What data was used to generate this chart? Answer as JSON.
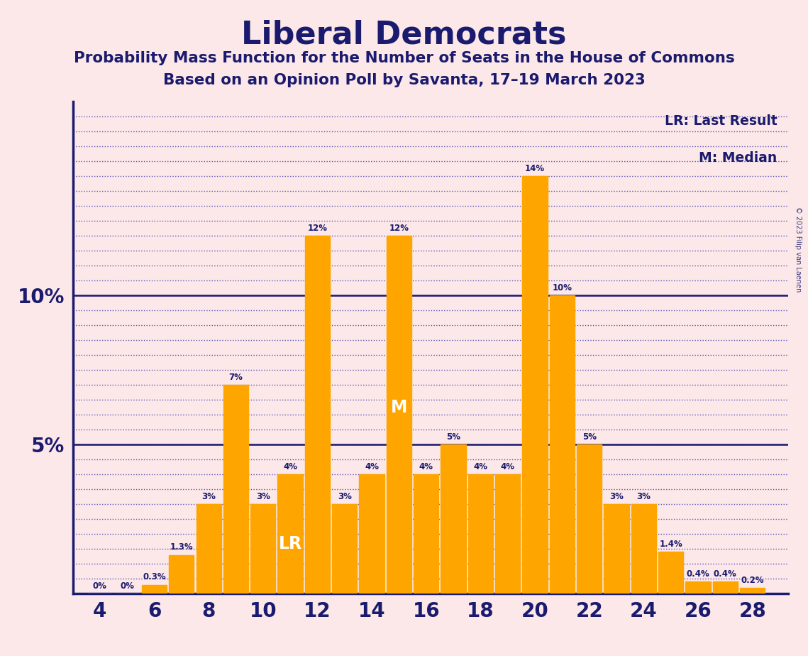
{
  "title": "Liberal Democrats",
  "subtitle1": "Probability Mass Function for the Number of Seats in the House of Commons",
  "subtitle2": "Based on an Opinion Poll by Savanta, 17–19 March 2023",
  "copyright": "© 2023 Filip van Laenen",
  "background_color": "#fce8e8",
  "bar_color": "#FFA500",
  "text_color": "#1a1a6e",
  "seats": [
    4,
    5,
    6,
    7,
    8,
    9,
    10,
    11,
    12,
    13,
    14,
    15,
    16,
    17,
    18,
    19,
    20,
    21,
    22,
    23,
    24,
    25,
    26,
    27,
    28
  ],
  "values": [
    0.0,
    0.0,
    0.3,
    1.3,
    3.0,
    7.0,
    3.0,
    4.0,
    12.0,
    3.0,
    4.0,
    12.0,
    4.0,
    5.0,
    4.0,
    4.0,
    14.0,
    10.0,
    5.0,
    3.0,
    3.0,
    1.4,
    0.4,
    0.4,
    0.2
  ],
  "value_labels": [
    "0%",
    "0%",
    "0.3%",
    "1.3%",
    "3%",
    "7%",
    "3%",
    "4%",
    "12%",
    "3%",
    "4%",
    "12%",
    "4%",
    "5%",
    "4%",
    "4%",
    "14%",
    "10%",
    "5%",
    "3%",
    "3%",
    "1.4%",
    "0.4%",
    "0.4%",
    "0.2%"
  ],
  "last_seat_value": 0.0,
  "last_result_seat": 11,
  "median_seat": 15,
  "ylim": [
    0,
    16.5
  ],
  "xticks": [
    4,
    6,
    8,
    10,
    12,
    14,
    16,
    18,
    20,
    22,
    24,
    26,
    28
  ],
  "legend_lr": "LR: Last Result",
  "legend_m": "M: Median",
  "grid_color": "#3333aa",
  "solid_line_color": "#1a1a6e",
  "axis_color": "#1a1a6e"
}
